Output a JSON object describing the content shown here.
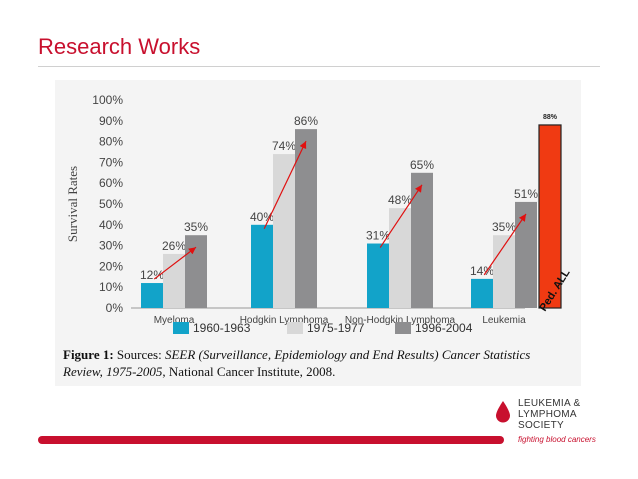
{
  "slide": {
    "title": "Research Works"
  },
  "chart_data": {
    "type": "bar",
    "ylabel": "Survival Rates",
    "ylim": [
      0,
      100
    ],
    "yticks": [
      "0%",
      "10%",
      "20%",
      "30%",
      "40%",
      "50%",
      "60%",
      "70%",
      "80%",
      "90%",
      "100%"
    ],
    "categories": [
      "Myeloma",
      "Hodgkin Lymphoma",
      "Non-Hodgkin Lymphoma",
      "Leukemia"
    ],
    "series": [
      {
        "name": "1960-1963",
        "values": [
          12,
          40,
          31,
          14
        ],
        "labels": [
          "12%",
          "40%",
          "31%",
          "14%"
        ],
        "color": "#12a3c9"
      },
      {
        "name": "1975-1977",
        "values": [
          26,
          74,
          48,
          35
        ],
        "labels": [
          "26%",
          "74%",
          "48%",
          "35%"
        ],
        "color": "#d8d8d8"
      },
      {
        "name": "1996-2004",
        "values": [
          35,
          86,
          65,
          51
        ],
        "labels": [
          "35%",
          "86%",
          "65%",
          "51%"
        ],
        "color": "#8e8e90"
      }
    ],
    "overlay_bar": {
      "label": "Ped. ALL",
      "value": 88,
      "value_label": "88%",
      "color": "#f03a12"
    },
    "trend_arrow_color": "#e01010",
    "legend_position": "bottom"
  },
  "caption": {
    "figure_label": "Figure 1:",
    "sources_prefix": " Sources: ",
    "source_italic": "SEER (Surveillance, Epidemiology and End Results) Cancer Statistics Review, 1975-2005",
    "source_rest": ", National Cancer Institute, 2008."
  },
  "logo": {
    "line1": "LEUKEMIA &",
    "line2": "LYMPHOMA",
    "line3": "SOCIETY",
    "tagline": "fighting blood cancers",
    "color": "#c8102e"
  }
}
